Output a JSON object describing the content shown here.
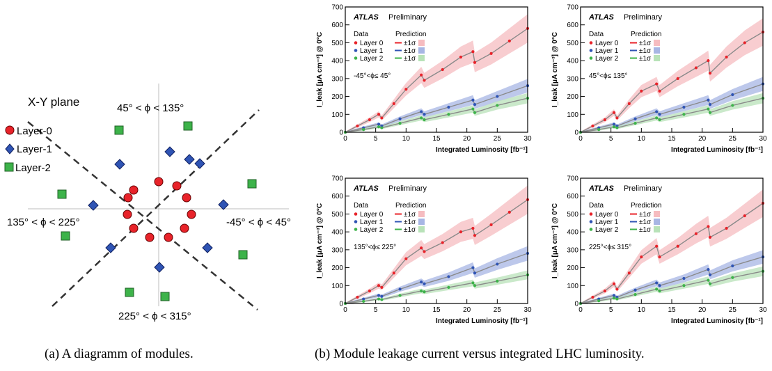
{
  "diagram": {
    "plane_title": "X-Y plane",
    "legend": [
      {
        "label": "Layer-0",
        "marker": "circle",
        "color": "#e8232a"
      },
      {
        "label": "Layer-1",
        "marker": "diamond",
        "color": "#2f54b4"
      },
      {
        "label": "Layer-2",
        "marker": "square",
        "color": "#3db34a"
      }
    ],
    "sector_labels": {
      "top": "45° < ϕ < 135°",
      "left": "135° < ϕ < 225°",
      "right": "-45° < ϕ < 45°",
      "bottom": "225° < ϕ < 315°"
    }
  },
  "captions": {
    "a": "(a) A diagramm of modules.",
    "b": "(b) Module leakage current versus integrated LHC luminosity."
  },
  "chart_common": {
    "ylabel": "I_leak [μA cm⁻³] @ 0°C",
    "xlabel": "Integrated Luminosity [fb⁻¹]",
    "atlas": "ATLAS",
    "atlas_tag": "Preliminary",
    "data_header": "Data",
    "prediction_header": "Prediction",
    "sigma_label": "±1σ",
    "x_ticks": [
      0,
      5,
      10,
      15,
      20,
      25,
      30
    ],
    "y_ticks": [
      0,
      100,
      200,
      300,
      400,
      500,
      600,
      700
    ]
  },
  "chart_data": [
    {
      "type": "line",
      "phi_range": "-45°<ϕ≤ 45°",
      "xlabel": "Integrated Luminosity [fb⁻¹]",
      "ylabel": "I_leak [μA cm⁻³] @ 0°C",
      "xlim": [
        0,
        30
      ],
      "ylim": [
        0,
        700
      ],
      "series": [
        {
          "name": "Layer 0",
          "color": "#e8232a",
          "band": "#f6bcc0",
          "x": [
            0,
            2,
            4,
            5.5,
            6,
            8,
            10,
            12.5,
            13,
            16,
            19,
            21,
            21.3,
            24,
            27,
            30
          ],
          "y": [
            0,
            35,
            70,
            100,
            80,
            160,
            240,
            320,
            290,
            350,
            420,
            450,
            390,
            440,
            510,
            580
          ]
        },
        {
          "name": "Layer 1",
          "color": "#2f54b4",
          "band": "#a7b6e4",
          "x": [
            0,
            3,
            5.5,
            6,
            9,
            12.5,
            13,
            17,
            21,
            21.3,
            25,
            30
          ],
          "y": [
            0,
            25,
            45,
            35,
            75,
            115,
            100,
            140,
            180,
            155,
            200,
            260
          ]
        },
        {
          "name": "Layer 2",
          "color": "#3db34a",
          "band": "#b8e2b8",
          "x": [
            0,
            3,
            5.5,
            6,
            9,
            12.5,
            13,
            17,
            21,
            21.3,
            25,
            30
          ],
          "y": [
            0,
            15,
            30,
            25,
            50,
            80,
            70,
            100,
            130,
            110,
            150,
            190
          ]
        }
      ]
    },
    {
      "type": "line",
      "phi_range": "45°<ϕ≤ 135°",
      "xlabel": "Integrated Luminosity [fb⁻¹]",
      "ylabel": "I_leak [μA cm⁻³] @ 0°C",
      "xlim": [
        0,
        30
      ],
      "ylim": [
        0,
        700
      ],
      "series": [
        {
          "name": "Layer 0",
          "color": "#e8232a",
          "band": "#f6bcc0",
          "x": [
            0,
            2,
            4,
            5.5,
            6,
            8,
            10,
            12.5,
            13,
            16,
            19,
            21,
            21.3,
            24,
            27,
            30
          ],
          "y": [
            0,
            35,
            70,
            110,
            80,
            160,
            230,
            270,
            230,
            300,
            360,
            400,
            330,
            420,
            500,
            560
          ]
        },
        {
          "name": "Layer 1",
          "color": "#2f54b4",
          "band": "#a7b6e4",
          "x": [
            0,
            3,
            5.5,
            6,
            9,
            12.5,
            13,
            17,
            21,
            21.3,
            25,
            30
          ],
          "y": [
            0,
            25,
            45,
            35,
            75,
            115,
            100,
            140,
            180,
            155,
            210,
            270
          ]
        },
        {
          "name": "Layer 2",
          "color": "#3db34a",
          "band": "#b8e2b8",
          "x": [
            0,
            3,
            5.5,
            6,
            9,
            12.5,
            13,
            17,
            21,
            21.3,
            25,
            30
          ],
          "y": [
            0,
            15,
            30,
            25,
            50,
            80,
            70,
            100,
            130,
            110,
            150,
            190
          ]
        }
      ]
    },
    {
      "type": "line",
      "phi_range": "135°<ϕ≤ 225°",
      "xlabel": "Integrated Luminosity [fb⁻¹]",
      "ylabel": "I_leak [μA cm⁻³] @ 0°C",
      "xlim": [
        0,
        30
      ],
      "ylim": [
        0,
        700
      ],
      "series": [
        {
          "name": "Layer 0",
          "color": "#e8232a",
          "band": "#f6bcc0",
          "x": [
            0,
            2,
            4,
            5.5,
            6,
            8,
            10,
            12.5,
            13,
            16,
            19,
            21,
            21.3,
            24,
            27,
            30
          ],
          "y": [
            0,
            35,
            70,
            100,
            90,
            170,
            250,
            310,
            290,
            340,
            400,
            420,
            380,
            440,
            510,
            580
          ]
        },
        {
          "name": "Layer 1",
          "color": "#2f54b4",
          "band": "#a7b6e4",
          "x": [
            0,
            3,
            5.5,
            6,
            9,
            12.5,
            13,
            17,
            21,
            21.3,
            25,
            30
          ],
          "y": [
            0,
            25,
            45,
            40,
            80,
            120,
            110,
            150,
            200,
            170,
            220,
            280
          ]
        },
        {
          "name": "Layer 2",
          "color": "#3db34a",
          "band": "#b8e2b8",
          "x": [
            0,
            3,
            5.5,
            6,
            9,
            12.5,
            13,
            17,
            21,
            21.3,
            25,
            30
          ],
          "y": [
            0,
            12,
            25,
            22,
            45,
            70,
            65,
            90,
            115,
            100,
            125,
            160
          ]
        }
      ]
    },
    {
      "type": "line",
      "phi_range": "225°<ϕ≤ 315°",
      "xlabel": "Integrated Luminosity [fb⁻¹]",
      "ylabel": "I_leak [μA cm⁻³] @ 0°C",
      "xlim": [
        0,
        30
      ],
      "ylim": [
        0,
        700
      ],
      "series": [
        {
          "name": "Layer 0",
          "color": "#e8232a",
          "band": "#f6bcc0",
          "x": [
            0,
            2,
            4,
            5.5,
            6,
            8,
            10,
            12.5,
            13,
            16,
            19,
            21,
            21.3,
            24,
            27,
            30
          ],
          "y": [
            0,
            35,
            70,
            110,
            80,
            170,
            260,
            320,
            260,
            320,
            390,
            430,
            370,
            420,
            490,
            560
          ]
        },
        {
          "name": "Layer 1",
          "color": "#2f54b4",
          "band": "#a7b6e4",
          "x": [
            0,
            3,
            5.5,
            6,
            9,
            12.5,
            13,
            17,
            21,
            21.3,
            25,
            30
          ],
          "y": [
            0,
            25,
            45,
            35,
            75,
            115,
            100,
            140,
            190,
            160,
            210,
            260
          ]
        },
        {
          "name": "Layer 2",
          "color": "#3db34a",
          "band": "#b8e2b8",
          "x": [
            0,
            3,
            5.5,
            6,
            9,
            12.5,
            13,
            17,
            21,
            21.3,
            25,
            30
          ],
          "y": [
            0,
            15,
            30,
            25,
            50,
            80,
            70,
            100,
            130,
            110,
            145,
            180
          ]
        }
      ]
    }
  ]
}
